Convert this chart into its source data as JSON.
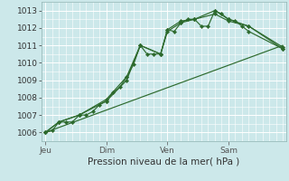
{
  "background_color": "#cce8ea",
  "grid_color": "#ffffff",
  "grid_minor_color": "#ddeef0",
  "line_color": "#2d6a2d",
  "title": "Pression niveau de la mer( hPa )",
  "ylim": [
    1005.5,
    1013.5
  ],
  "yticks": [
    1006,
    1007,
    1008,
    1009,
    1010,
    1011,
    1012,
    1013
  ],
  "xlabel_day_labels": [
    "Jeu",
    "Dim",
    "Ven",
    "Sam"
  ],
  "xlabel_day_positions": [
    0,
    9,
    18,
    27
  ],
  "x_total_steps": 36,
  "xlim": [
    -0.5,
    35.5
  ],
  "series_main": [
    [
      0,
      1006.0
    ],
    [
      1,
      1006.1
    ],
    [
      2,
      1006.6
    ],
    [
      3,
      1006.6
    ],
    [
      4,
      1006.6
    ],
    [
      5,
      1007.0
    ],
    [
      6,
      1007.0
    ],
    [
      7,
      1007.2
    ],
    [
      8,
      1007.6
    ],
    [
      9,
      1007.8
    ],
    [
      10,
      1008.3
    ],
    [
      11,
      1008.6
    ],
    [
      12,
      1009.2
    ],
    [
      13,
      1009.9
    ],
    [
      14,
      1011.0
    ],
    [
      15,
      1010.5
    ],
    [
      16,
      1010.5
    ],
    [
      17,
      1010.5
    ],
    [
      18,
      1011.9
    ],
    [
      19,
      1011.8
    ],
    [
      20,
      1012.3
    ],
    [
      21,
      1012.5
    ],
    [
      22,
      1012.5
    ],
    [
      23,
      1012.1
    ],
    [
      24,
      1012.1
    ],
    [
      25,
      1013.0
    ],
    [
      26,
      1012.8
    ],
    [
      27,
      1012.5
    ],
    [
      28,
      1012.4
    ],
    [
      29,
      1012.1
    ],
    [
      30,
      1011.8
    ],
    [
      35,
      1010.8
    ]
  ],
  "series2": [
    [
      0,
      1006.0
    ],
    [
      2,
      1006.6
    ],
    [
      5,
      1007.0
    ],
    [
      9,
      1007.8
    ],
    [
      12,
      1009.0
    ],
    [
      14,
      1011.0
    ],
    [
      17,
      1010.5
    ],
    [
      18,
      1011.8
    ],
    [
      20,
      1012.3
    ],
    [
      22,
      1012.5
    ],
    [
      25,
      1012.8
    ],
    [
      27,
      1012.4
    ],
    [
      30,
      1012.1
    ],
    [
      35,
      1010.9
    ]
  ],
  "series3": [
    [
      0,
      1006.0
    ],
    [
      2,
      1006.6
    ],
    [
      5,
      1007.0
    ],
    [
      9,
      1007.9
    ],
    [
      12,
      1009.2
    ],
    [
      14,
      1011.0
    ],
    [
      17,
      1010.5
    ],
    [
      18,
      1011.9
    ],
    [
      20,
      1012.4
    ],
    [
      22,
      1012.5
    ],
    [
      25,
      1013.0
    ],
    [
      27,
      1012.5
    ],
    [
      30,
      1012.1
    ],
    [
      35,
      1010.8
    ]
  ],
  "series_linear": [
    [
      0,
      1006.0
    ],
    [
      35,
      1011.0
    ]
  ]
}
